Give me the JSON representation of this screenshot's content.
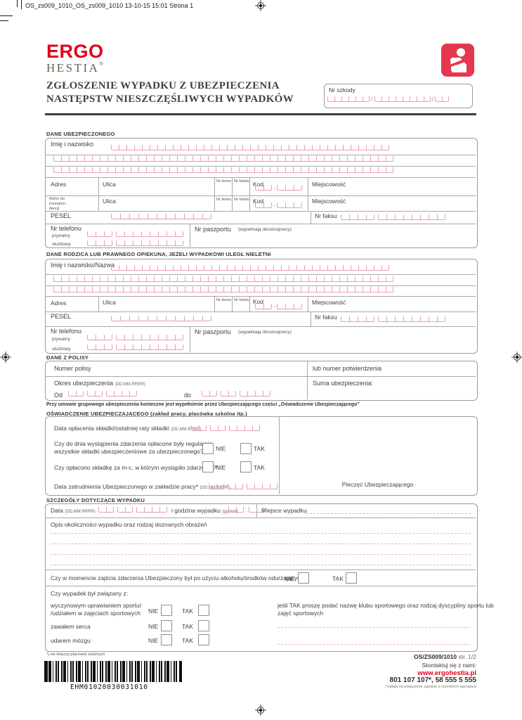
{
  "page": {
    "printer_slug": "OS_zs009_1010_OS_zs009_1010  13-10-15  15:01  Strona 1"
  },
  "brand": {
    "ergo": "ERGO",
    "hestia": "HESTIA",
    "reg": "®"
  },
  "header": {
    "title_line1": "ZGŁOSZENIE WYPADKU Z UBEZPIECZENIA",
    "title_line2": "NASTĘPSTW NIESZCZĘŚLIWYCH WYPADKÓW",
    "claim_no_label": "Nr szkody"
  },
  "labels": {
    "name": "Imię i nazwisko",
    "name_or_company": "Imię i nazwisko/Nazwa",
    "address": "Adres",
    "address_corr": "Adres do\nkorespon-\ndencji",
    "street": "Ulica",
    "house_no": "Nr domu",
    "flat_no": "Nr lokalu",
    "postal_code": "Kod",
    "city": "Miejscowość",
    "pesel": "PESEL",
    "fax": "Nr faksu",
    "phone": "Nr telefonu",
    "phone_private": "prywatny",
    "phone_work": "służbowy",
    "passport": "Nr paszportu",
    "passport_note": "(wypełniają obcokrajowcy)",
    "no": "NIE",
    "yes": "TAK",
    "from": "Od",
    "to": "do",
    "date_format": "(DD.MM.RRRR)",
    "time_format": "(gg:mm)"
  },
  "sections": {
    "insured_heading": "DANE UBEZPIECZONEGO",
    "guardian_heading": "DANE RODZICA LUB PRAWNEGO OPIEKUNA, JEŻELI WYPADKOWI ULEGŁ NIELETNI",
    "policy_heading": "DANE Z POLISY",
    "declaration_heading": "OŚWIADCZENIE UBEZPIECZAJĄCEGO (zakład pracy, placówka szkolna itp.)",
    "accident_heading": "SZCZEGÓŁY DOTYCZĄCE WYPADKU"
  },
  "policy": {
    "policy_no_label": "Numer polisy",
    "confirmation_no_label": "lub numer potwierdzenia",
    "period_label": "Okres ubezpieczenia",
    "sum_label": "Suma ubezpieczenia:"
  },
  "group_note": "Przy umowie grupowego ubezpieczenia konieczne jest wypełnienie przez Ubezpieczającego części „Oświadczenie Ubezpieczającego”",
  "declaration": {
    "premium_date_label": "Data opłacenia składki/ostatniej raty składki",
    "q_regular_premiums": "Czy do dnia wystąpienia zdarzenia opłacone były regularnie\nwszystkie składki ubezpieczeniowe za ubezpieczonego?*",
    "q_month_premium": "Czy opłacono składkę za m-c, w którym wystąpiło zdarzenie?*",
    "employment_date_label": "Data zatrudnienia Ubezpieczonego w zakładzie pracy*",
    "stamp_label": "Pieczęć Ubezpieczającego"
  },
  "accident": {
    "date_label": "Data",
    "time_label": "i godzina wypadku",
    "place_label": "Miejsce wypadku",
    "description_label": "Opis okoliczności wypadku oraz rodzaj doznanych obrażeń",
    "alcohol_question": "Czy w momencie zajścia zdarzenia Ubezpieczony był po użyciu alkoholu/środków odurzających?",
    "related_question": "Czy wypadek był związany z:",
    "related_sport": "wyczynowym uprawianiem sportu/\n/udziałem w zajęciach sportowych",
    "related_heart": "zawałem serca",
    "related_stroke": "udarem mózgu",
    "club_note": "jeśli TAK proszę podać nazwę klubu sportowego oraz rodzaj dyscypliny sportu lub\nzajęć sportowych"
  },
  "footer": {
    "footnote": "*) nie dotyczy placówek szkolnych",
    "form_code": "OS/ZS009/1010",
    "page_info": "str. 1/2",
    "contact_heading": "Skontaktuj się z nami:",
    "website": "www.ergohestia.pl",
    "phones": "801 107 107*, 58 555 5 555",
    "phone_footnote": "*opłata za połączenie zgodnie z cennikiem operatora",
    "barcode_text": "EHM01020030031010"
  },
  "colors": {
    "brand_red": "#e2001a",
    "comb_pink": "#ea9cb1",
    "line_gray": "#9b9b9b",
    "ink": "#3e3933"
  }
}
